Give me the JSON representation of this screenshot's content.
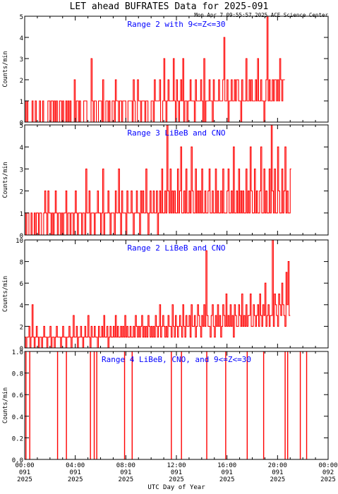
{
  "title": "LET ahead BUFRATES Data for 2025-091",
  "timestamp": "Mon Apr  7 09:55:57 2025 ACE Science Center",
  "xlabel": "UTC Day of Year",
  "colors": {
    "trace": "#ff0000",
    "panel_title": "#0000ff",
    "axes": "#000000"
  },
  "x_ticks": [
    {
      "time": "00:00",
      "day": "091",
      "year": "2025"
    },
    {
      "time": "04:00",
      "day": "091",
      "year": "2025"
    },
    {
      "time": "08:00",
      "day": "091",
      "year": "2025"
    },
    {
      "time": "12:00",
      "day": "091",
      "year": "2025"
    },
    {
      "time": "16:00",
      "day": "091",
      "year": "2025"
    },
    {
      "time": "20:00",
      "day": "091",
      "year": "2025"
    },
    {
      "time": "00:00",
      "day": "092",
      "year": "2025"
    }
  ],
  "chart_data": [
    {
      "type": "line",
      "title": "Range 2 with 9<=Z<=30",
      "ylabel": "Counts/min",
      "xlim": [
        "00:00",
        "24:00"
      ],
      "ylim": [
        0,
        5
      ],
      "y_ticks": [
        "0",
        "1",
        "2",
        "3",
        "4",
        "5"
      ],
      "series": [
        {
          "sample_step_min": 5,
          "values": [
            1,
            0,
            1,
            0,
            0,
            0,
            0,
            1,
            0,
            0,
            1,
            0,
            0,
            0,
            1,
            0,
            0,
            1,
            0,
            0,
            0,
            0,
            1,
            1,
            0,
            1,
            1,
            0,
            1,
            0,
            1,
            0,
            0,
            1,
            1,
            0,
            1,
            0,
            0,
            1,
            0,
            1,
            0,
            1,
            0,
            0,
            0,
            2,
            0,
            1,
            1,
            0,
            1,
            0,
            0,
            0,
            1,
            1,
            1,
            0,
            0,
            0,
            0,
            3,
            1,
            0,
            1,
            1,
            0,
            0,
            1,
            1,
            1,
            0,
            2,
            0,
            0,
            1,
            1,
            0,
            1,
            0,
            0,
            1,
            1,
            0,
            2,
            1,
            1,
            0,
            1,
            1,
            0,
            1,
            1,
            1,
            0,
            0,
            1,
            1,
            1,
            1,
            0,
            2,
            1,
            0,
            0,
            2,
            1,
            1,
            0,
            1,
            1,
            1,
            0,
            1,
            1,
            0,
            0,
            0,
            1,
            1,
            0,
            2,
            1,
            1,
            1,
            1,
            2,
            0,
            0,
            1,
            3,
            1,
            0,
            1,
            2,
            1,
            1,
            1,
            1,
            3,
            1,
            0,
            2,
            1,
            0,
            1,
            2,
            1,
            3,
            0,
            1,
            1,
            0,
            1,
            1,
            2,
            1,
            1,
            1,
            0,
            2,
            1,
            1,
            1,
            1,
            2,
            1,
            0,
            3,
            0,
            1,
            1,
            1,
            2,
            1,
            1,
            0,
            2,
            1,
            1,
            1,
            1,
            2,
            1,
            1,
            1,
            2,
            4,
            1,
            1,
            2,
            0,
            1,
            1,
            2,
            1,
            1,
            2,
            1,
            2,
            2,
            1,
            1,
            0,
            2,
            1,
            1,
            1,
            3,
            1,
            1,
            2,
            1,
            2,
            1,
            1,
            1,
            2,
            1,
            3,
            1,
            1,
            2,
            1,
            1,
            0,
            1,
            2,
            5,
            1,
            2,
            1,
            1,
            2,
            1,
            2,
            2,
            1,
            2,
            1,
            3,
            2,
            1,
            2,
            2
          ]
        }
      ]
    },
    {
      "type": "line",
      "title": "Range 3 LiBeB and CNO",
      "ylabel": "Counts/min",
      "xlim": [
        "00:00",
        "24:00"
      ],
      "ylim": [
        0,
        5
      ],
      "y_ticks": [
        "0",
        "1",
        "2",
        "3",
        "4",
        "5"
      ],
      "series": [
        {
          "sample_step_min": 5,
          "values": [
            1,
            0,
            1,
            1,
            0,
            0,
            1,
            0,
            0,
            1,
            0,
            1,
            1,
            0,
            1,
            1,
            0,
            0,
            1,
            2,
            1,
            0,
            2,
            1,
            1,
            0,
            1,
            0,
            1,
            2,
            1,
            0,
            1,
            1,
            0,
            1,
            0,
            1,
            1,
            2,
            0,
            1,
            1,
            0,
            1,
            1,
            0,
            1,
            2,
            1,
            0,
            1,
            1,
            1,
            0,
            1,
            1,
            0,
            3,
            1,
            1,
            2,
            0,
            1,
            1,
            1,
            0,
            1,
            1,
            2,
            1,
            1,
            0,
            1,
            3,
            0,
            1,
            1,
            1,
            2,
            1,
            0,
            1,
            1,
            1,
            0,
            2,
            1,
            1,
            3,
            1,
            0,
            2,
            1,
            1,
            1,
            0,
            2,
            1,
            1,
            1,
            2,
            1,
            0,
            1,
            1,
            2,
            1,
            1,
            0,
            2,
            1,
            2,
            1,
            1,
            3,
            1,
            0,
            1,
            2,
            1,
            1,
            2,
            1,
            1,
            2,
            0,
            1,
            2,
            1,
            3,
            1,
            1,
            2,
            1,
            5,
            2,
            1,
            3,
            1,
            2,
            1,
            2,
            1,
            1,
            3,
            1,
            2,
            4,
            1,
            1,
            2,
            1,
            3,
            1,
            1,
            2,
            1,
            4,
            2,
            1,
            1,
            3,
            1,
            2,
            1,
            2,
            1,
            3,
            1,
            1,
            2,
            1,
            1,
            2,
            3,
            1,
            1,
            2,
            1,
            1,
            3,
            1,
            2,
            1,
            1,
            2,
            1,
            3,
            1,
            1,
            1,
            2,
            3,
            1,
            1,
            2,
            1,
            4,
            1,
            1,
            2,
            1,
            3,
            1,
            2,
            1,
            2,
            1,
            1,
            3,
            1,
            2,
            1,
            4,
            2,
            1,
            1,
            3,
            1,
            2,
            1,
            1,
            2,
            4,
            1,
            1,
            3,
            1,
            2,
            1,
            1,
            3,
            1,
            5,
            2,
            1,
            3,
            1,
            1,
            4,
            2,
            1,
            1,
            3,
            1,
            2,
            4,
            1,
            2,
            1,
            1,
            3
          ]
        }
      ]
    },
    {
      "type": "line",
      "title": "Range 2 LiBeB and CNO",
      "ylabel": "Counts/min",
      "xlim": [
        "00:00",
        "24:00"
      ],
      "ylim": [
        0,
        10
      ],
      "y_ticks": [
        "0",
        "2",
        "4",
        "6",
        "8",
        "10"
      ],
      "series": [
        {
          "sample_step_min": 5,
          "values": [
            1,
            0,
            1,
            1,
            2,
            0,
            1,
            4,
            1,
            0,
            1,
            2,
            1,
            0,
            1,
            1,
            0,
            1,
            2,
            1,
            1,
            0,
            1,
            1,
            2,
            0,
            1,
            1,
            0,
            1,
            2,
            1,
            1,
            1,
            0,
            1,
            2,
            1,
            1,
            0,
            1,
            1,
            2,
            1,
            0,
            1,
            3,
            1,
            1,
            2,
            0,
            1,
            1,
            2,
            1,
            0,
            1,
            2,
            1,
            1,
            3,
            1,
            0,
            2,
            1,
            1,
            2,
            1,
            1,
            0,
            2,
            1,
            1,
            2,
            1,
            3,
            1,
            1,
            2,
            0,
            1,
            2,
            1,
            1,
            2,
            1,
            3,
            1,
            2,
            1,
            1,
            2,
            1,
            2,
            1,
            3,
            1,
            2,
            1,
            1,
            2,
            1,
            1,
            2,
            1,
            3,
            2,
            1,
            2,
            1,
            2,
            3,
            1,
            2,
            1,
            2,
            1,
            3,
            2,
            1,
            2,
            1,
            2,
            1,
            3,
            2,
            1,
            2,
            4,
            1,
            2,
            3,
            2,
            1,
            2,
            1,
            3,
            2,
            2,
            1,
            4,
            2,
            1,
            3,
            2,
            1,
            2,
            3,
            2,
            1,
            4,
            2,
            1,
            3,
            2,
            2,
            3,
            1,
            4,
            2,
            2,
            3,
            1,
            2,
            4,
            3,
            2,
            1,
            3,
            2,
            4,
            2,
            9,
            3,
            2,
            2,
            1,
            3,
            4,
            2,
            1,
            3,
            2,
            4,
            2,
            3,
            1,
            2,
            4,
            3,
            2,
            5,
            2,
            3,
            2,
            4,
            2,
            3,
            1,
            4,
            3,
            2,
            2,
            4,
            3,
            2,
            5,
            2,
            3,
            2,
            4,
            2,
            3,
            3,
            5,
            2,
            2,
            4,
            3,
            2,
            3,
            4,
            2,
            5,
            3,
            2,
            4,
            3,
            6,
            2,
            3,
            4,
            2,
            3,
            3,
            10,
            2,
            5,
            4,
            3,
            2,
            5,
            4,
            3,
            6,
            4,
            3,
            2,
            7,
            4,
            8,
            3
          ]
        }
      ]
    },
    {
      "type": "line",
      "title": "Range 4 LiBeB, CNO, and 9<=Z<=30",
      "ylabel": "Counts/min",
      "xlim": [
        "00:00",
        "24:00"
      ],
      "ylim": [
        0,
        1
      ],
      "y_ticks": [
        "0.0",
        "0.2",
        "0.4",
        "0.6",
        "0.8",
        "1.0"
      ],
      "series": [
        {
          "spike_times_hours": [
            0.1,
            0.4,
            2.6,
            3.3,
            5.2,
            5.5,
            5.7,
            7.9,
            8.5,
            11.6,
            12.4,
            14.4,
            15.9,
            17.6,
            18.9,
            20.6,
            20.8,
            21.8,
            22.3
          ]
        }
      ]
    }
  ]
}
